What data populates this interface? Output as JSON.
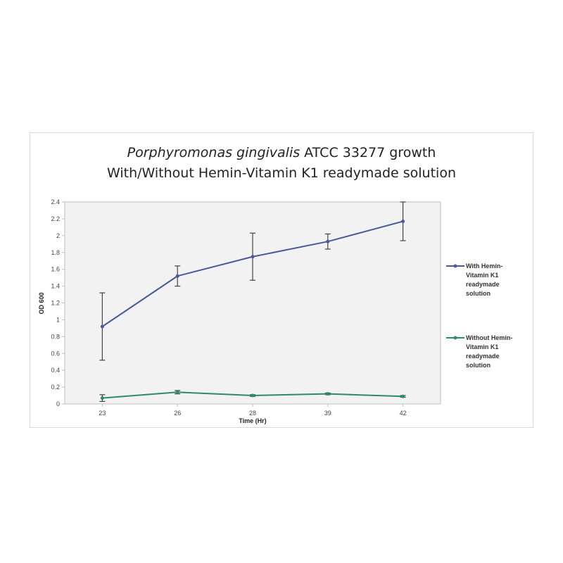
{
  "chart_data": {
    "type": "line",
    "title_italic": "Porphyromonas gingivalis",
    "title_rest": " ATCC 33277 growth",
    "subtitle": "With/Without Hemin-Vitamin K1 readymade solution",
    "xlabel": "Time (Hr)",
    "ylabel": "OD 600",
    "categories": [
      "23",
      "26",
      "28",
      "39",
      "42"
    ],
    "ylim": [
      0,
      2.4
    ],
    "yticks": [
      "0",
      "0.2",
      "0.4",
      "0.6",
      "0.8",
      "1",
      "1.2",
      "1.4",
      "1.6",
      "1.8",
      "2",
      "2.2",
      "2.4"
    ],
    "grid": false,
    "legend_position": "right",
    "series": [
      {
        "name_lines": [
          "With Hemin-",
          "Vitamin K1",
          "readymade",
          "solution"
        ],
        "color": "#4a5a9a",
        "values": [
          0.92,
          1.52,
          1.75,
          1.93,
          2.17
        ],
        "errors": [
          0.4,
          0.12,
          0.28,
          0.09,
          0.23
        ]
      },
      {
        "name_lines": [
          "Without Hemin-",
          "Vitamin K1",
          "readymade",
          "solution"
        ],
        "color": "#2e8b6a",
        "values": [
          0.07,
          0.14,
          0.1,
          0.12,
          0.09
        ],
        "errors": [
          0.04,
          0.02,
          0.01,
          0.01,
          0.01
        ]
      }
    ]
  },
  "colors": {
    "plot_background": "#f2f2f2",
    "axis": "#bfbfbf"
  }
}
